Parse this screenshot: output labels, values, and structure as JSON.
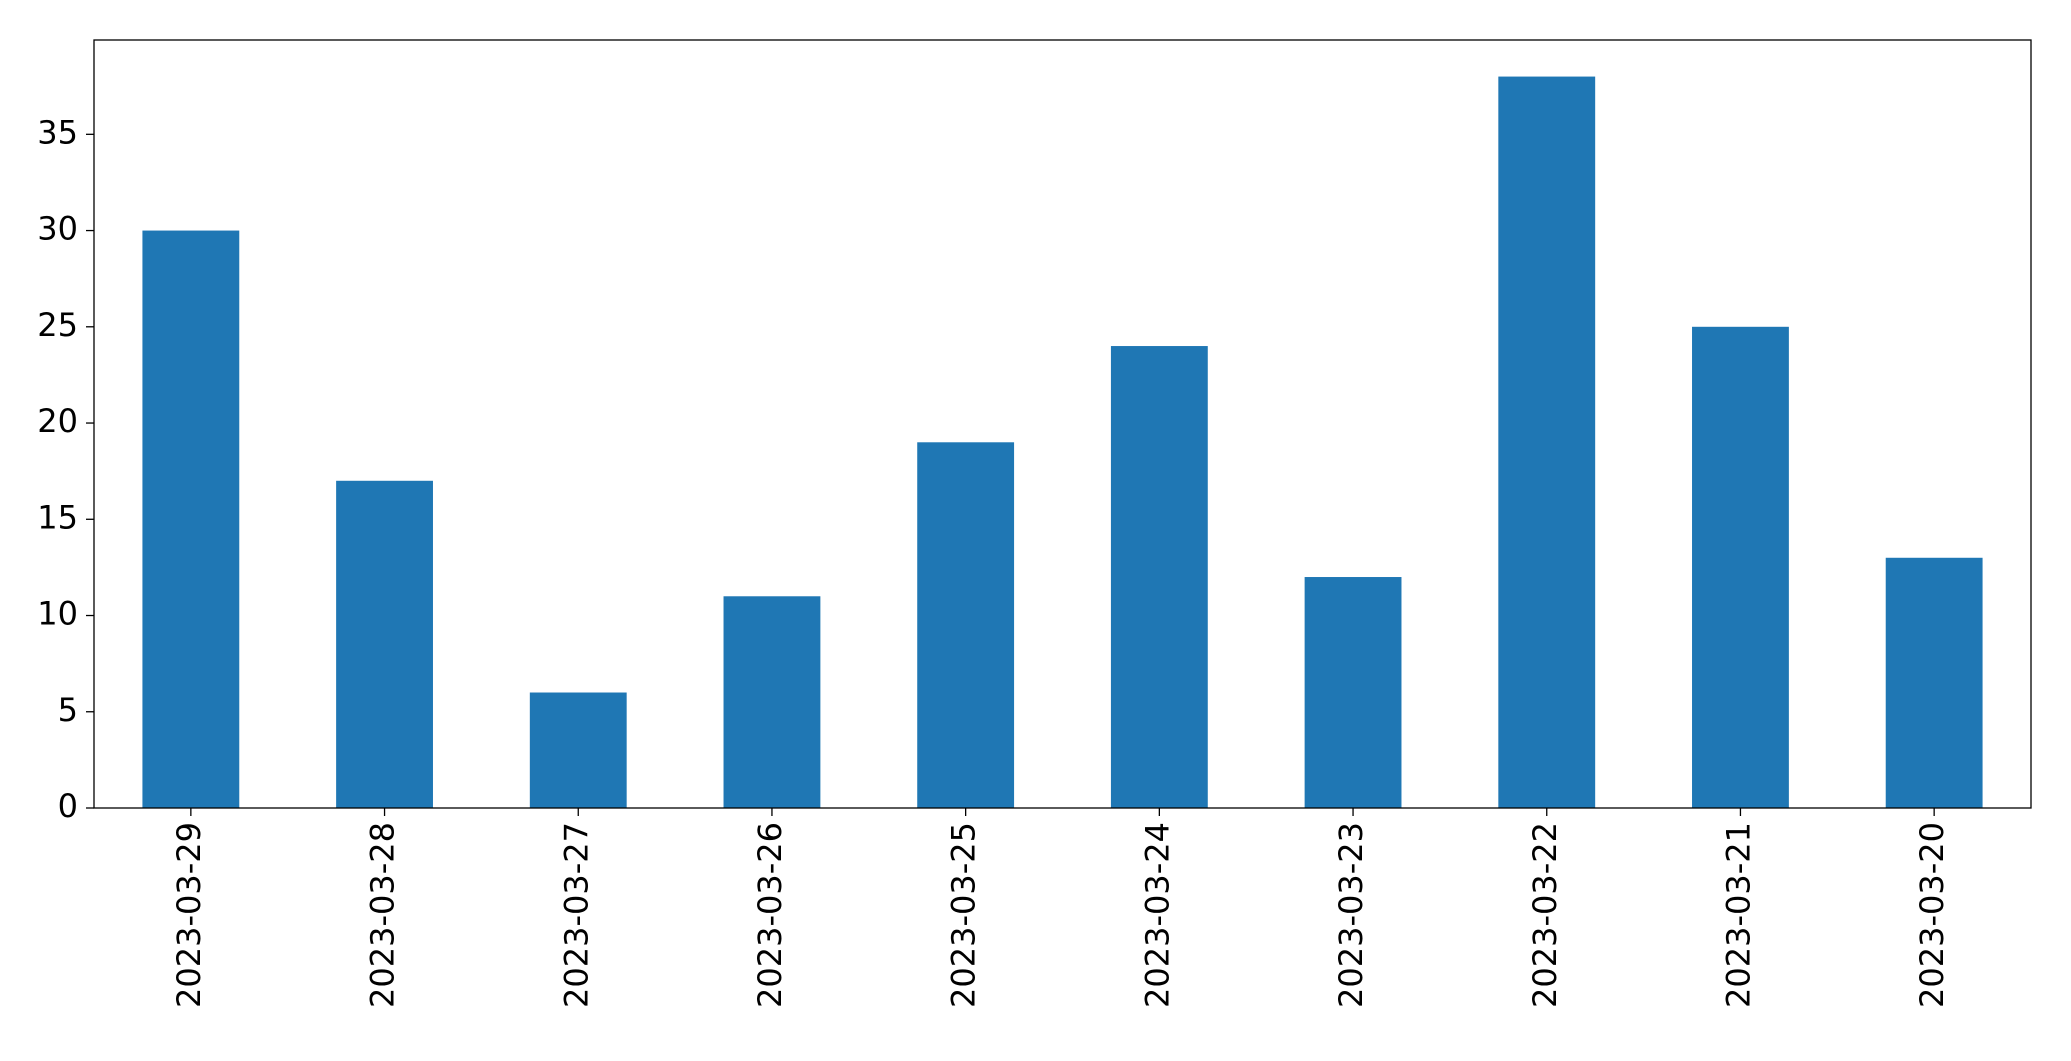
{
  "chart_data": {
    "type": "bar",
    "categories": [
      "2023-03-29",
      "2023-03-28",
      "2023-03-27",
      "2023-03-26",
      "2023-03-25",
      "2023-03-24",
      "2023-03-23",
      "2023-03-22",
      "2023-03-21",
      "2023-03-20"
    ],
    "values": [
      30,
      17,
      6,
      11,
      19,
      24,
      12,
      38,
      25,
      13
    ],
    "color": "#1f77b4",
    "ylim": [
      0,
      39.9
    ],
    "yticks": [
      0,
      5,
      10,
      15,
      20,
      25,
      30,
      35
    ],
    "grid": false
  }
}
